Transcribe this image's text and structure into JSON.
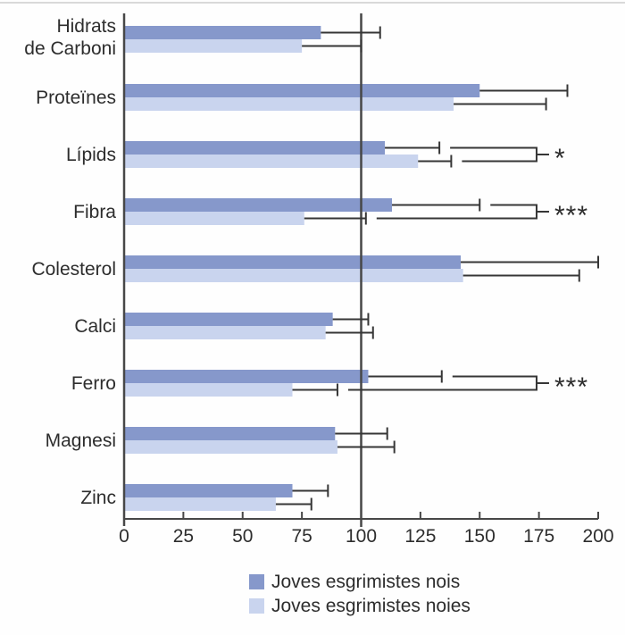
{
  "chart_data": {
    "type": "bar",
    "orientation": "horizontal",
    "title": "",
    "xlabel": "",
    "ylabel": "",
    "xlim": [
      0,
      200
    ],
    "xticks": [
      0,
      25,
      50,
      75,
      100,
      125,
      150,
      175,
      200
    ],
    "reference_line_x": 100,
    "grid": false,
    "legend_position": "bottom",
    "categories": [
      "Hidrats\nde Carboni",
      "Proteïnes",
      "Lípids",
      "Fibra",
      "Colesterol",
      "Calci",
      "Ferro",
      "Magnesi",
      "Zinc"
    ],
    "series": [
      {
        "name": "Joves esgrimistes nois",
        "color": "#8698cb",
        "values": [
          83,
          150,
          110,
          113,
          142,
          88,
          103,
          89,
          71
        ],
        "error_to": [
          108,
          187,
          133,
          150,
          200,
          103,
          134,
          111,
          86
        ]
      },
      {
        "name": "Joves esgrimistes noies",
        "color": "#c9d4ee",
        "values": [
          75,
          139,
          124,
          76,
          143,
          85,
          71,
          90,
          64
        ],
        "error_to": [
          100,
          178,
          138,
          102,
          192,
          105,
          90,
          114,
          79
        ]
      }
    ],
    "significance": [
      "",
      "",
      "*",
      "***",
      "",
      "",
      "***",
      "",
      ""
    ]
  },
  "legend": {
    "items": [
      {
        "label": "Joves esgrimistes nois",
        "color": "#8698cb"
      },
      {
        "label": "Joves esgrimistes noies",
        "color": "#c9d4ee"
      }
    ]
  },
  "colors": {
    "bar_nois": "#8698cb",
    "bar_noies": "#c9d4ee",
    "axis": "#474747",
    "error_line": "#363636",
    "text": "#2d2d2d",
    "top_border": "#d9d9d9"
  }
}
